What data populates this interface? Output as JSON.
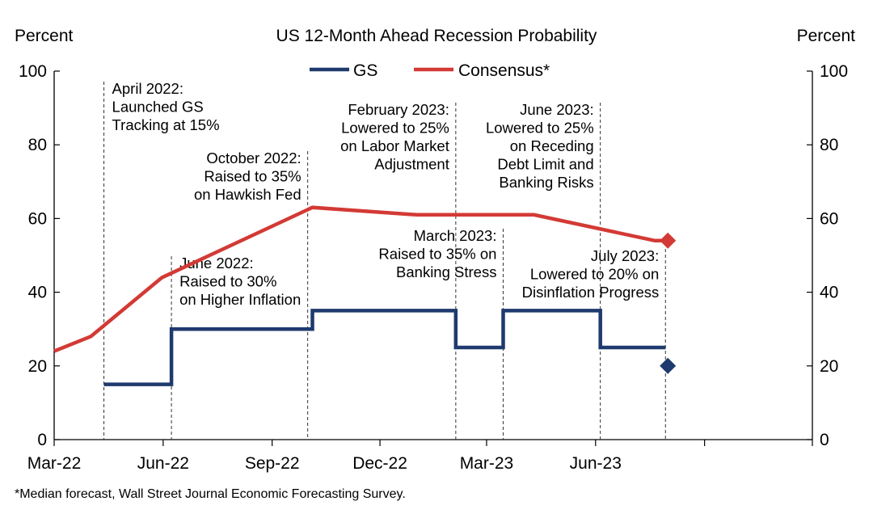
{
  "chart_data": {
    "type": "line",
    "title": "US 12-Month Ahead Recession Probability",
    "y_left_label": "Percent",
    "y_right_label": "Percent",
    "ylim": [
      0,
      100
    ],
    "y_ticks": [
      0,
      20,
      40,
      60,
      80,
      100
    ],
    "x_tick_labels": [
      "Mar-22",
      "Jun-22",
      "Sep-22",
      "Dec-22",
      "Mar-23",
      "Jun-23"
    ],
    "grid": false,
    "legend_position": "top-center",
    "series": [
      {
        "name": "GS",
        "color": "#1f3a6e",
        "step": true,
        "points": [
          {
            "x": "2022-04-12",
            "y": 15
          },
          {
            "x": "2022-06-08",
            "y": 15
          },
          {
            "x": "2022-06-08",
            "y": 30
          },
          {
            "x": "2022-10-05",
            "y": 30
          },
          {
            "x": "2022-10-05",
            "y": 35
          },
          {
            "x": "2023-02-03",
            "y": 35
          },
          {
            "x": "2023-02-03",
            "y": 25
          },
          {
            "x": "2023-03-15",
            "y": 25
          },
          {
            "x": "2023-03-15",
            "y": 35
          },
          {
            "x": "2023-06-05",
            "y": 35
          },
          {
            "x": "2023-06-05",
            "y": 25
          },
          {
            "x": "2023-07-30",
            "y": 25
          }
        ],
        "marker": {
          "x": "2023-08-01",
          "y": 20,
          "shape": "diamond"
        }
      },
      {
        "name": "Consensus*",
        "color": "#d33a35",
        "step": false,
        "points": [
          {
            "x": "2022-03-01",
            "y": 24
          },
          {
            "x": "2022-04-01",
            "y": 28
          },
          {
            "x": "2022-05-31",
            "y": 44
          },
          {
            "x": "2022-10-05",
            "y": 63
          },
          {
            "x": "2023-01-01",
            "y": 61
          },
          {
            "x": "2023-04-10",
            "y": 61
          },
          {
            "x": "2023-07-21",
            "y": 54
          },
          {
            "x": "2023-08-01",
            "y": 54
          }
        ],
        "marker": {
          "x": "2023-08-01",
          "y": 54,
          "shape": "diamond"
        }
      }
    ],
    "annotations": [
      {
        "x": "2022-04-12",
        "lines": [
          "April 2022:",
          "Launched GS",
          "Tracking at 15%"
        ],
        "align": "left"
      },
      {
        "x": "2022-06-08",
        "lines": [
          "June 2022:",
          "Raised to 30%",
          "on Higher Inflation"
        ],
        "align": "left"
      },
      {
        "x": "2022-10-01",
        "lines": [
          "October 2022:",
          "Raised to 35%",
          "on Hawkish Fed"
        ],
        "align": "right"
      },
      {
        "x": "2023-02-03",
        "lines": [
          "February 2023:",
          "Lowered to 25%",
          "on Labor Market",
          "Adjustment"
        ],
        "align": "right"
      },
      {
        "x": "2023-03-15",
        "lines": [
          "March 2023:",
          "Raised to 35% on",
          "Banking Stress"
        ],
        "align": "right"
      },
      {
        "x": "2023-06-05",
        "lines": [
          "June 2023:",
          "Lowered to 25%",
          "on Receding",
          "Debt Limit and",
          "Banking Risks"
        ],
        "align": "right"
      },
      {
        "x": "2023-07-30",
        "lines": [
          "July 2023:",
          "Lowered to 20% on",
          "Disinflation Progress"
        ],
        "align": "right"
      }
    ],
    "footnote": "*Median forecast, Wall Street Journal Economic Forecasting Survey."
  }
}
